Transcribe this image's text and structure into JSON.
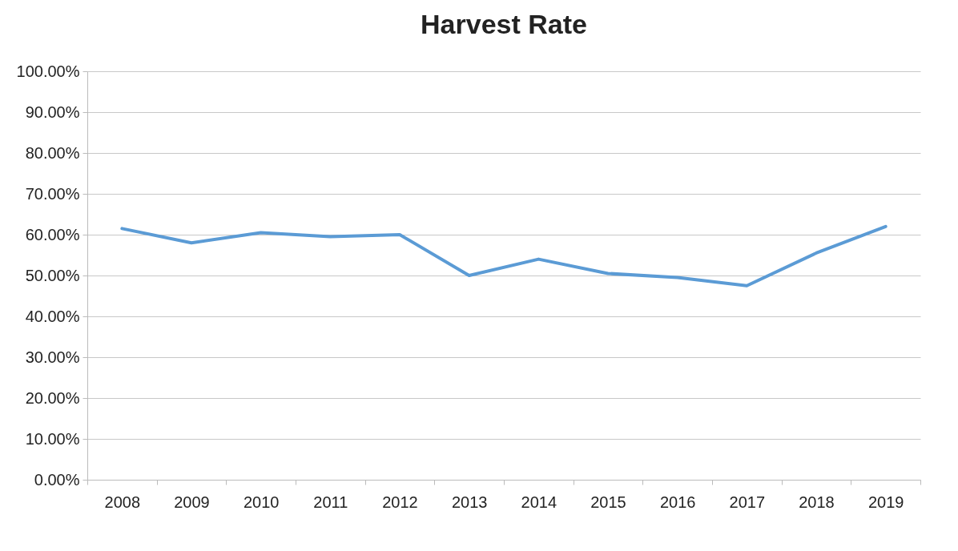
{
  "chart_data": {
    "type": "line",
    "title": "Harvest Rate",
    "categories": [
      "2008",
      "2009",
      "2010",
      "2011",
      "2012",
      "2013",
      "2014",
      "2015",
      "2016",
      "2017",
      "2018",
      "2019"
    ],
    "series": [
      {
        "color": "#5b9bd5",
        "values": [
          61.5,
          58,
          60.5,
          59.5,
          60,
          50,
          54,
          50.5,
          49.5,
          47.5,
          55.5,
          62
        ]
      }
    ],
    "ylim": [
      0,
      100
    ],
    "yticks": [
      {
        "value": 0,
        "label": "0.00%"
      },
      {
        "value": 10,
        "label": "10.00%"
      },
      {
        "value": 20,
        "label": "20.00%"
      },
      {
        "value": 30,
        "label": "30.00%"
      },
      {
        "value": 40,
        "label": "40.00%"
      },
      {
        "value": 50,
        "label": "50.00%"
      },
      {
        "value": 60,
        "label": "60.00%"
      },
      {
        "value": 70,
        "label": "70.00%"
      },
      {
        "value": 80,
        "label": "80.00%"
      },
      {
        "value": 90,
        "label": "90.00%"
      },
      {
        "value": 100,
        "label": "100.00%"
      }
    ],
    "grid": "y",
    "legend": false,
    "marker": "none",
    "line_style": "solid"
  }
}
